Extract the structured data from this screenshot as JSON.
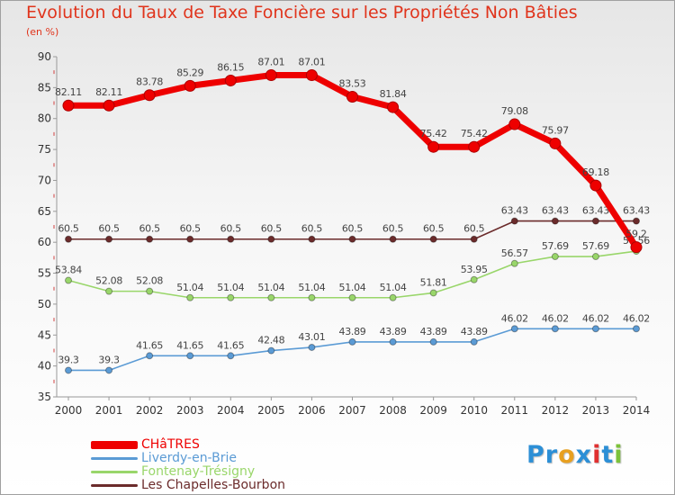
{
  "header": {
    "title": "Evolution du Taux de Taxe Foncière sur les Propriétés Non Bâties",
    "unit": "(en %)"
  },
  "brand": {
    "parts": [
      {
        "text": "Pr",
        "color": "#2c8fd6"
      },
      {
        "text": "o",
        "color": "#e8a020"
      },
      {
        "text": "x",
        "color": "#2c8fd6"
      },
      {
        "text": "i",
        "color": "#e03030"
      },
      {
        "text": "t",
        "color": "#2c8fd6"
      },
      {
        "text": "i",
        "color": "#7cc23a"
      }
    ]
  },
  "chart_data": {
    "type": "line",
    "x": [
      "2000",
      "2001",
      "2002",
      "2003",
      "2004",
      "2005",
      "2006",
      "2007",
      "2008",
      "2009",
      "2010",
      "2011",
      "2012",
      "2013",
      "2014"
    ],
    "ylim": [
      35,
      90
    ],
    "yticks": [
      35,
      40,
      45,
      50,
      55,
      60,
      65,
      70,
      75,
      80,
      85,
      90
    ],
    "grid": false,
    "legend_position": "bottom-left",
    "series": [
      {
        "name": "Liverdy-en-Brie",
        "color": "#5b9bd5",
        "values": [
          39.3,
          39.3,
          41.65,
          41.65,
          41.65,
          42.48,
          43.01,
          43.89,
          43.89,
          43.89,
          43.89,
          46.02,
          46.02,
          46.02,
          46.02
        ],
        "labels": [
          "39.3",
          "39.3",
          "41.65",
          "41.65",
          "41.65",
          "42.48",
          "43.01",
          "43.89",
          "43.89",
          "43.89",
          "43.89",
          "46.02",
          "46.02",
          "46.02",
          "46.02"
        ]
      },
      {
        "name": "Fontenay-Trésigny",
        "color": "#99d66a",
        "values": [
          53.84,
          52.08,
          52.08,
          51.04,
          51.04,
          51.04,
          51.04,
          51.04,
          51.04,
          51.81,
          53.95,
          56.57,
          57.69,
          57.69,
          58.56
        ],
        "labels": [
          "53.84",
          "52.08",
          "52.08",
          "51.04",
          "51.04",
          "51.04",
          "51.04",
          "51.04",
          "51.04",
          "51.81",
          "53.95",
          "56.57",
          "57.69",
          "57.69",
          "58.56"
        ]
      },
      {
        "name": "Les Chapelles-Bourbon",
        "color": "#6b2b2b",
        "values": [
          60.5,
          60.5,
          60.5,
          60.5,
          60.5,
          60.5,
          60.5,
          60.5,
          60.5,
          60.5,
          60.5,
          63.43,
          63.43,
          63.43,
          63.43
        ],
        "labels": [
          "60.5",
          "60.5",
          "60.5",
          "60.5",
          "60.5",
          "60.5",
          "60.5",
          "60.5",
          "60.5",
          "60.5",
          "60.5",
          "63.43",
          "63.43",
          "63.43",
          "63.43"
        ]
      },
      {
        "name": "CHâTRES",
        "color": "#ee0000",
        "values": [
          82.11,
          82.11,
          83.78,
          85.29,
          86.15,
          87.01,
          87.01,
          83.53,
          81.84,
          75.42,
          75.42,
          79.08,
          75.97,
          69.18,
          59.2
        ],
        "labels": [
          "82.11",
          "82.11",
          "83.78",
          "85.29",
          "86.15",
          "87.01",
          "87.01",
          "83.53",
          "81.84",
          "75.42",
          "75.42",
          "79.08",
          "75.97",
          "69.18",
          "59.2"
        ]
      }
    ],
    "legend": [
      {
        "name": "CHâTRES",
        "color": "#ee0000",
        "thick": true
      },
      {
        "name": "Liverdy-en-Brie",
        "color": "#5b9bd5",
        "thick": false
      },
      {
        "name": "Fontenay-Trésigny",
        "color": "#99d66a",
        "thick": false
      },
      {
        "name": "Les Chapelles-Bourbon",
        "color": "#6b2b2b",
        "thick": false
      }
    ]
  }
}
